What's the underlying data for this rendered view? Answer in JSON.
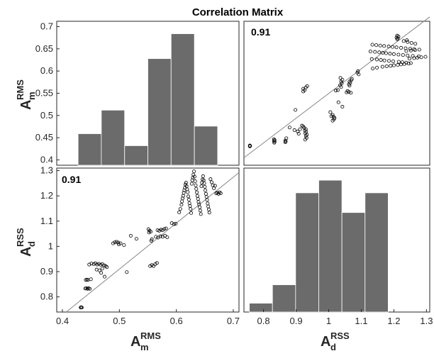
{
  "chart_data": {
    "type": "scatter-matrix",
    "title": "Correlation Matrix",
    "colors": {
      "bar_fill": "#6b6b6b",
      "bar_edge": "#ffffff",
      "marker_edge": "#000000",
      "fit_line": "#888888"
    },
    "variables": [
      {
        "name": "A",
        "sub": "m",
        "sup": "RMS",
        "range": [
          0.39,
          0.71
        ],
        "hist_range": [
          0.39,
          0.71
        ],
        "ticks": [
          0.4,
          0.5,
          0.6,
          0.7
        ],
        "tick_labels": [
          "0.4",
          "0.5",
          "0.6",
          "0.7"
        ]
      },
      {
        "name": "A",
        "sub": "d",
        "sup": "RSS",
        "range": [
          0.74,
          1.31
        ],
        "hist_range": [
          0.74,
          1.31
        ],
        "ticks": [
          0.8,
          0.9,
          1.0,
          1.1,
          1.2,
          1.3
        ],
        "tick_labels": [
          "0.8",
          "0.9",
          "1",
          "1.1",
          "1.2",
          "1.3"
        ]
      }
    ],
    "histograms": [
      {
        "variable": "A_m^RMS",
        "bin_edges": [
          0.4275,
          0.4683,
          0.5092,
          0.55,
          0.5908,
          0.6317,
          0.6725
        ],
        "ylim": [
          0.388,
          0.712
        ],
        "y_ticks": [
          0.45,
          0.5,
          0.55,
          0.6,
          0.65,
          0.7
        ],
        "y_ticks_all": [
          0.4,
          0.45,
          0.5,
          0.55,
          0.6,
          0.65,
          0.7
        ],
        "y_tick_labels": [
          "0.4",
          "0.45",
          "0.5",
          "0.55",
          "0.6",
          "0.65",
          "0.7"
        ],
        "bar_tops": [
          0.459,
          0.512,
          0.432,
          0.628,
          0.684,
          0.476
        ]
      },
      {
        "variable": "A_d^RSS",
        "bin_edges": [
          0.7565,
          0.8275,
          0.8985,
          0.9695,
          1.0405,
          1.1115,
          1.1825
        ],
        "bar_tops": [
          0.775,
          0.848,
          1.212,
          1.262,
          1.134,
          1.212
        ]
      }
    ],
    "scatter": {
      "r": 0.91,
      "r_label": "0.91",
      "fit": {
        "slope": 1.82,
        "intercept": 0.0
      },
      "points": [
        [
          0.432,
          0.758
        ],
        [
          0.433,
          0.759
        ],
        [
          0.434,
          0.758
        ],
        [
          0.44,
          0.833
        ],
        [
          0.442,
          0.834
        ],
        [
          0.444,
          0.832
        ],
        [
          0.446,
          0.834
        ],
        [
          0.448,
          0.832
        ],
        [
          0.441,
          0.867
        ],
        [
          0.443,
          0.868
        ],
        [
          0.445,
          0.867
        ],
        [
          0.45,
          0.87
        ],
        [
          0.447,
          0.928
        ],
        [
          0.451,
          0.932
        ],
        [
          0.455,
          0.93
        ],
        [
          0.458,
          0.933
        ],
        [
          0.461,
          0.928
        ],
        [
          0.464,
          0.931
        ],
        [
          0.467,
          0.927
        ],
        [
          0.47,
          0.93
        ],
        [
          0.473,
          0.925
        ],
        [
          0.476,
          0.922
        ],
        [
          0.478,
          0.918
        ],
        [
          0.47,
          0.912
        ],
        [
          0.46,
          0.908
        ],
        [
          0.465,
          0.905
        ],
        [
          0.468,
          0.895
        ],
        [
          0.474,
          0.88
        ],
        [
          0.489,
          1.012
        ],
        [
          0.492,
          1.016
        ],
        [
          0.495,
          1.018
        ],
        [
          0.498,
          1.015
        ],
        [
          0.502,
          1.012
        ],
        [
          0.499,
          1.008
        ],
        [
          0.508,
          1.005
        ],
        [
          0.513,
          0.898
        ],
        [
          0.52,
          1.042
        ],
        [
          0.53,
          1.03
        ],
        [
          0.551,
          1.068
        ],
        [
          0.552,
          1.055
        ],
        [
          0.553,
          1.062
        ],
        [
          0.555,
          1.058
        ],
        [
          0.556,
          1.022
        ],
        [
          0.557,
          1.028
        ],
        [
          0.554,
          0.922
        ],
        [
          0.557,
          0.926
        ],
        [
          0.56,
          0.922
        ],
        [
          0.563,
          0.93
        ],
        [
          0.566,
          0.934
        ],
        [
          0.567,
          1.064
        ],
        [
          0.57,
          1.062
        ],
        [
          0.573,
          1.066
        ],
        [
          0.576,
          1.064
        ],
        [
          0.579,
          1.069
        ],
        [
          0.582,
          1.071
        ],
        [
          0.564,
          1.038
        ],
        [
          0.568,
          1.035
        ],
        [
          0.572,
          1.04
        ],
        [
          0.576,
          1.038
        ],
        [
          0.58,
          1.042
        ],
        [
          0.584,
          1.036
        ],
        [
          0.592,
          1.092
        ],
        [
          0.596,
          1.088
        ],
        [
          0.599,
          1.09
        ],
        [
          0.605,
          1.135
        ],
        [
          0.607,
          1.148
        ],
        [
          0.609,
          1.165
        ],
        [
          0.61,
          1.178
        ],
        [
          0.611,
          1.19
        ],
        [
          0.612,
          1.2
        ],
        [
          0.613,
          1.212
        ],
        [
          0.614,
          1.222
        ],
        [
          0.615,
          1.232
        ],
        [
          0.616,
          1.245
        ],
        [
          0.617,
          1.252
        ],
        [
          0.618,
          1.238
        ],
        [
          0.619,
          1.226
        ],
        [
          0.62,
          1.215
        ],
        [
          0.621,
          1.198
        ],
        [
          0.622,
          1.185
        ],
        [
          0.623,
          1.171
        ],
        [
          0.624,
          1.16
        ],
        [
          0.625,
          1.148
        ],
        [
          0.626,
          1.132
        ],
        [
          0.627,
          1.248
        ],
        [
          0.628,
          1.262
        ],
        [
          0.629,
          1.272
        ],
        [
          0.63,
          1.284
        ],
        [
          0.631,
          1.297
        ],
        [
          0.632,
          1.276
        ],
        [
          0.633,
          1.258
        ],
        [
          0.634,
          1.242
        ],
        [
          0.635,
          1.228
        ],
        [
          0.636,
          1.214
        ],
        [
          0.637,
          1.2
        ],
        [
          0.638,
          1.188
        ],
        [
          0.639,
          1.176
        ],
        [
          0.64,
          1.166
        ],
        [
          0.641,
          1.155
        ],
        [
          0.642,
          1.142
        ],
        [
          0.643,
          1.128
        ],
        [
          0.644,
          1.238
        ],
        [
          0.645,
          1.252
        ],
        [
          0.646,
          1.265
        ],
        [
          0.647,
          1.278
        ],
        [
          0.648,
          1.262
        ],
        [
          0.649,
          1.25
        ],
        [
          0.65,
          1.236
        ],
        [
          0.651,
          1.222
        ],
        [
          0.652,
          1.208
        ],
        [
          0.653,
          1.196
        ],
        [
          0.654,
          1.184
        ],
        [
          0.655,
          1.17
        ],
        [
          0.656,
          1.158
        ],
        [
          0.657,
          1.146
        ],
        [
          0.658,
          1.134
        ],
        [
          0.66,
          1.266
        ],
        [
          0.662,
          1.254
        ],
        [
          0.664,
          1.242
        ],
        [
          0.666,
          1.23
        ],
        [
          0.668,
          1.24
        ],
        [
          0.67,
          1.21
        ],
        [
          0.672,
          1.212
        ],
        [
          0.674,
          1.208
        ],
        [
          0.676,
          1.214
        ],
        [
          0.678,
          1.21
        ]
      ]
    }
  }
}
